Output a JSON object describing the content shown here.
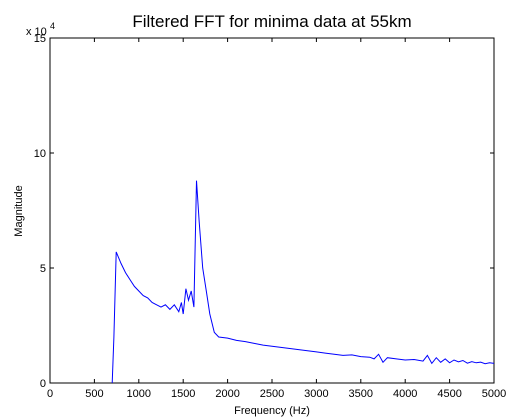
{
  "chart_data": {
    "type": "line",
    "title": "Filtered FFT for minima data at 55km",
    "xlabel": "Frequency (Hz)",
    "ylabel": "Magnitude",
    "xlim": [
      0,
      5000
    ],
    "ylim": [
      0,
      150000
    ],
    "x_ticks": [
      0,
      500,
      1000,
      1500,
      2000,
      2500,
      3000,
      3500,
      4000,
      4500,
      5000
    ],
    "y_ticks": [
      0,
      50000,
      100000,
      150000
    ],
    "y_tick_labels": [
      "0",
      "5",
      "10",
      "15"
    ],
    "y_exponent_base": "x 10",
    "y_exponent_power": "4",
    "grid": false,
    "series_color": "#0000ff",
    "series": [
      {
        "x": [
          700,
          720,
          745,
          800,
          850,
          900,
          950,
          1000,
          1050,
          1100,
          1150,
          1200,
          1250,
          1300,
          1350,
          1400,
          1450,
          1480,
          1500,
          1530,
          1560,
          1590,
          1620,
          1650,
          1680,
          1720,
          1760,
          1800,
          1850,
          1900,
          2000,
          2100,
          2200,
          2300,
          2400,
          2500,
          2600,
          2700,
          2800,
          2900,
          3000,
          3100,
          3200,
          3300,
          3400,
          3500,
          3600,
          3650,
          3700,
          3750,
          3800,
          3900,
          4000,
          4100,
          4200,
          4250,
          4300,
          4350,
          4400,
          4450,
          4500,
          4550,
          4600,
          4650,
          4700,
          4750,
          4800,
          4850,
          4900,
          4950,
          5000
        ],
        "y": [
          0,
          20000,
          57000,
          52000,
          48000,
          45000,
          42000,
          40000,
          38000,
          37000,
          35000,
          34000,
          33000,
          34000,
          32000,
          34000,
          31000,
          35000,
          30000,
          41000,
          36000,
          40000,
          33000,
          88000,
          70000,
          50000,
          40000,
          30000,
          22000,
          20000,
          19500,
          18500,
          18000,
          17200,
          16500,
          16000,
          15500,
          15000,
          14500,
          14000,
          13500,
          13000,
          12500,
          12000,
          12200,
          11500,
          11200,
          10500,
          12500,
          9000,
          11000,
          10500,
          10000,
          10200,
          9500,
          12000,
          8500,
          11000,
          9000,
          10500,
          8800,
          10000,
          9200,
          9800,
          8600,
          9300,
          8800,
          9100,
          8400,
          8800,
          8500
        ]
      }
    ]
  }
}
